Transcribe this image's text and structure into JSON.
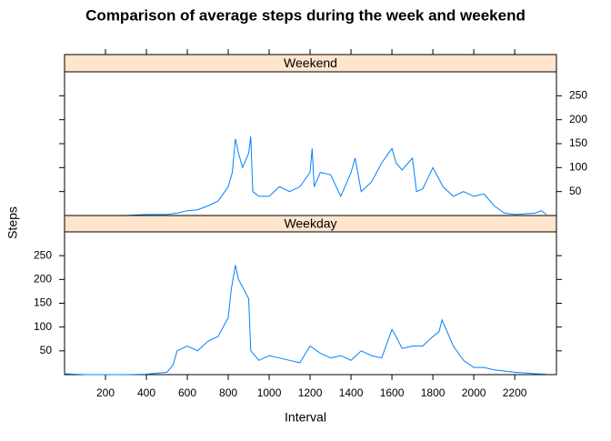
{
  "title": "Comparison of average steps during the week and weekend",
  "x_label": "Interval",
  "y_label": "Steps",
  "chart_data": [
    {
      "type": "line",
      "strip": "Weekend",
      "color": "#0080ff",
      "strip_color": "#ffe5cc",
      "x": [
        0,
        100,
        200,
        300,
        400,
        500,
        550,
        600,
        650,
        700,
        750,
        800,
        820,
        835,
        850,
        870,
        900,
        910,
        920,
        950,
        1000,
        1050,
        1100,
        1150,
        1200,
        1210,
        1220,
        1250,
        1300,
        1350,
        1400,
        1420,
        1450,
        1500,
        1550,
        1600,
        1620,
        1650,
        1700,
        1720,
        1750,
        1800,
        1850,
        1900,
        1950,
        2000,
        2050,
        2100,
        2150,
        2200,
        2300,
        2330,
        2355
      ],
      "values": [
        0,
        0,
        0,
        0,
        2,
        2,
        5,
        10,
        12,
        20,
        30,
        60,
        90,
        160,
        130,
        100,
        130,
        165,
        50,
        40,
        40,
        60,
        50,
        60,
        90,
        140,
        60,
        90,
        85,
        40,
        90,
        120,
        50,
        70,
        110,
        140,
        110,
        95,
        120,
        50,
        55,
        100,
        60,
        40,
        50,
        40,
        45,
        20,
        5,
        2,
        5,
        10,
        2
      ],
      "xlim": [
        0,
        2404
      ],
      "ylim": [
        0,
        300
      ],
      "xticks": [
        200,
        400,
        600,
        800,
        1000,
        1200,
        1400,
        1600,
        1800,
        2000,
        2200
      ],
      "yticks": [
        50,
        100,
        150,
        200,
        250
      ]
    },
    {
      "type": "line",
      "strip": "Weekday",
      "color": "#0080ff",
      "strip_color": "#ffe5cc",
      "x": [
        0,
        100,
        200,
        300,
        400,
        500,
        530,
        550,
        600,
        650,
        700,
        750,
        800,
        815,
        835,
        850,
        900,
        910,
        950,
        1000,
        1050,
        1100,
        1150,
        1200,
        1250,
        1300,
        1350,
        1400,
        1450,
        1500,
        1550,
        1600,
        1620,
        1650,
        1700,
        1750,
        1800,
        1830,
        1845,
        1900,
        1950,
        2000,
        2050,
        2100,
        2200,
        2300,
        2355
      ],
      "values": [
        2,
        0,
        0,
        0,
        1,
        5,
        20,
        50,
        60,
        50,
        70,
        80,
        120,
        180,
        230,
        200,
        160,
        50,
        30,
        40,
        35,
        30,
        25,
        60,
        45,
        35,
        40,
        30,
        50,
        40,
        35,
        95,
        80,
        55,
        60,
        60,
        80,
        90,
        115,
        60,
        30,
        15,
        15,
        10,
        5,
        2,
        1
      ],
      "xlim": [
        0,
        2404
      ],
      "ylim": [
        0,
        300
      ],
      "xticks": [
        200,
        400,
        600,
        800,
        1000,
        1200,
        1400,
        1600,
        1800,
        2000,
        2200
      ],
      "yticks": [
        50,
        100,
        150,
        200,
        250
      ]
    }
  ]
}
